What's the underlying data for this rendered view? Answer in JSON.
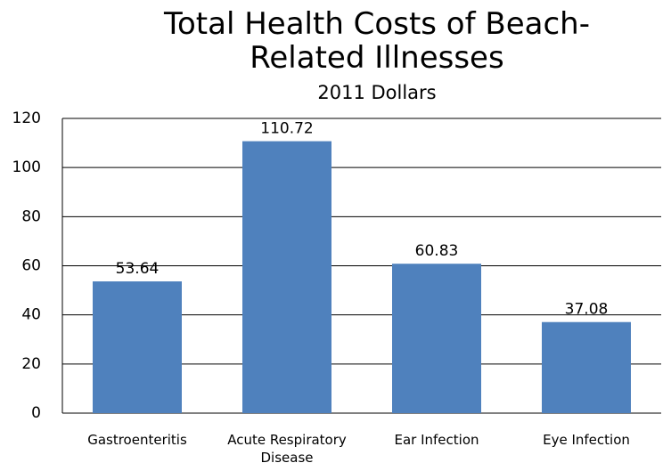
{
  "chart_data": {
    "type": "bar",
    "title": "Total Health Costs of Beach-Related Illnesses",
    "subtitle": "2011 Dollars",
    "categories": [
      "Gastroenteritis",
      "Acute Respiratory Disease",
      "Ear Infection",
      "Eye Infection"
    ],
    "values": [
      53.64,
      110.72,
      60.83,
      37.08
    ],
    "color": "#4f81bd",
    "ylim": [
      0,
      120
    ],
    "yticks": [
      0,
      20,
      40,
      60,
      80,
      100,
      120
    ],
    "grid": true
  }
}
